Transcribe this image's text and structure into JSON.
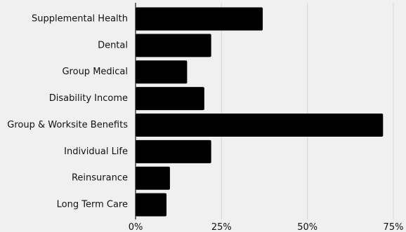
{
  "chart_data": {
    "type": "bar",
    "orientation": "horizontal",
    "title": "",
    "xlabel": "",
    "ylabel": "",
    "categories": [
      "Supplemental Health",
      "Dental",
      "Group Medical",
      "Disability Income",
      "Group & Worksite Benefits",
      "Individual Life",
      "Reinsurance",
      "Long Term Care"
    ],
    "values": [
      37,
      22,
      15,
      20,
      72,
      22,
      10,
      9
    ],
    "value_unit": "percent",
    "xlim": [
      0,
      75
    ],
    "xticks": [
      0,
      25,
      50,
      75
    ],
    "xtick_labels": [
      "0%",
      "25%",
      "50%",
      "75%"
    ],
    "grid": "vertical",
    "legend": "none",
    "colors": {
      "bar": "#000000",
      "background": "#f0f0f0",
      "grid": "#d6d6d6",
      "text": "#111111"
    }
  }
}
